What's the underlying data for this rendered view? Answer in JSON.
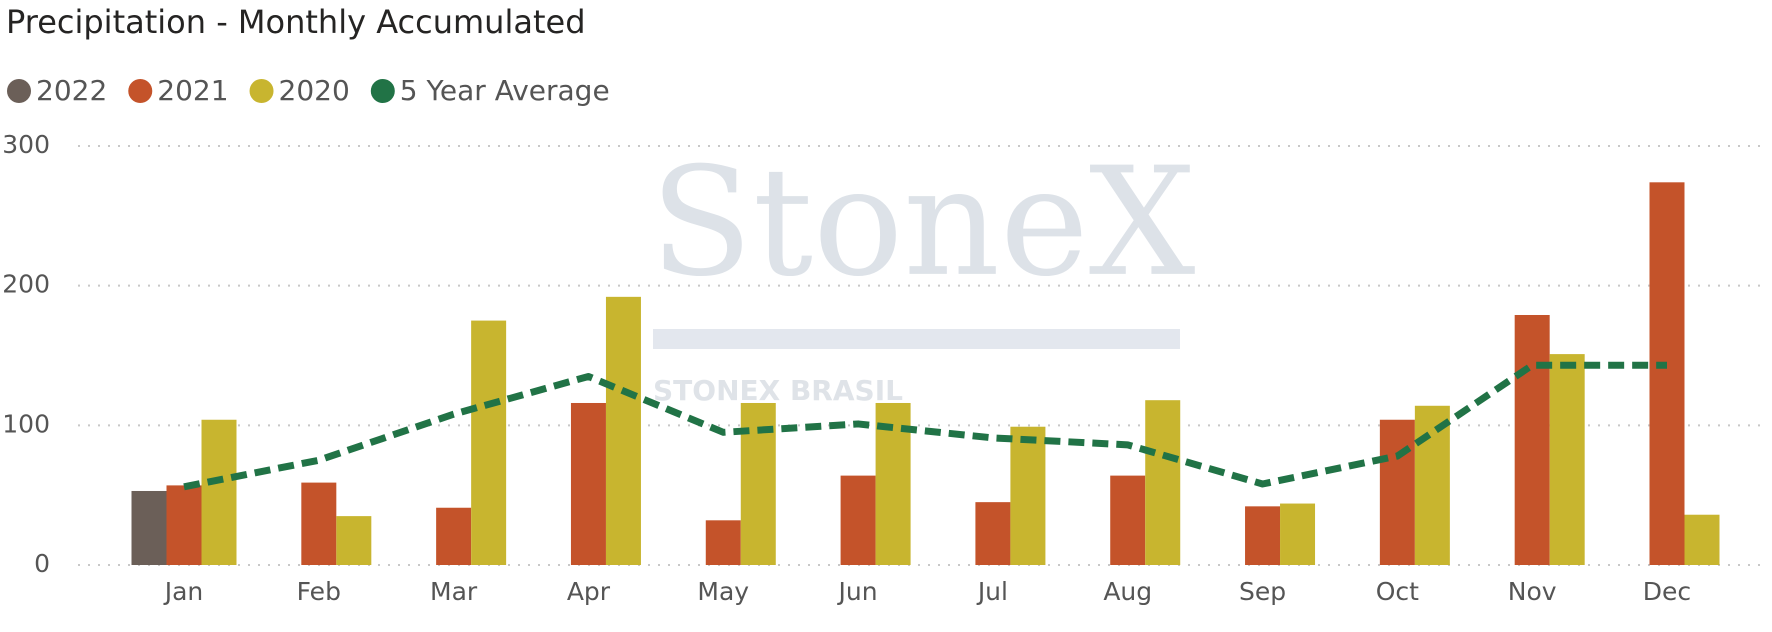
{
  "chart_data": {
    "type": "bar",
    "title": "Precipitation - Monthly Accumulated",
    "watermark": [
      "StoneX",
      "STONEX BRASIL"
    ],
    "categories": [
      "Jan",
      "Feb",
      "Mar",
      "Apr",
      "May",
      "Jun",
      "Jul",
      "Aug",
      "Sep",
      "Oct",
      "Nov",
      "Dec"
    ],
    "series": [
      {
        "name": "2022",
        "type": "bar",
        "color": "#6b5f58",
        "values": [
          53,
          null,
          null,
          null,
          null,
          null,
          null,
          null,
          null,
          null,
          null,
          null
        ]
      },
      {
        "name": "2021",
        "type": "bar",
        "color": "#c4532a",
        "values": [
          57,
          59,
          41,
          116,
          32,
          64,
          45,
          64,
          42,
          104,
          179,
          274
        ]
      },
      {
        "name": "2020",
        "type": "bar",
        "color": "#c8b52f",
        "values": [
          104,
          35,
          175,
          192,
          116,
          116,
          99,
          118,
          44,
          114,
          151,
          36
        ]
      },
      {
        "name": "5 Year Average",
        "type": "line",
        "color": "#217346",
        "values": [
          56,
          75,
          108,
          135,
          95,
          101,
          91,
          86,
          58,
          78,
          143,
          143
        ]
      }
    ],
    "ylim": [
      0,
      300
    ],
    "yticks": [
      0,
      100,
      200,
      300
    ],
    "grid": true,
    "legend": "top-left"
  }
}
